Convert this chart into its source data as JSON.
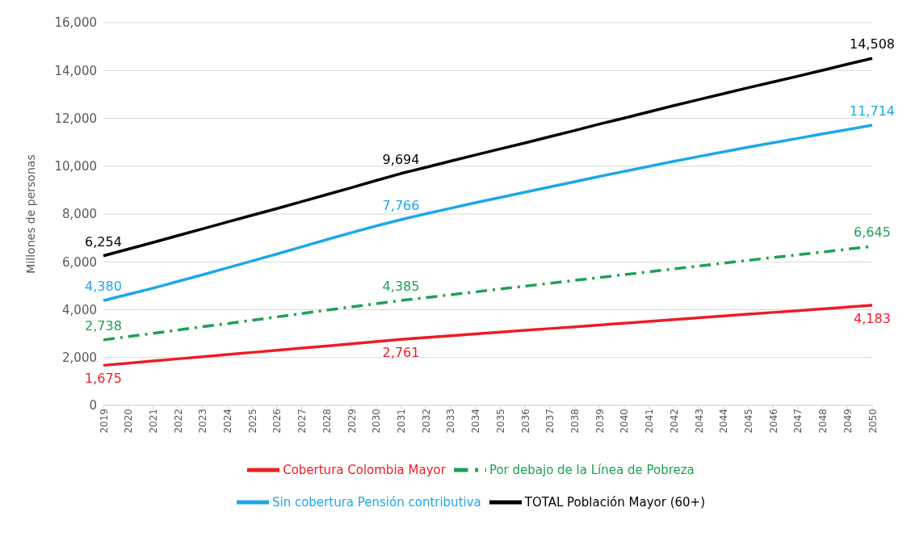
{
  "chart_data": {
    "type": "line",
    "ylabel": "Millones de personas",
    "categories": [
      "2019",
      "2020",
      "2021",
      "2022",
      "2023",
      "2024",
      "2025",
      "2026",
      "2027",
      "2028",
      "2029",
      "2030",
      "2031",
      "2032",
      "2033",
      "2034",
      "2035",
      "2036",
      "2037",
      "2038",
      "2039",
      "2040",
      "2041",
      "2042",
      "2043",
      "2044",
      "2045",
      "2046",
      "2047",
      "2048",
      "2049",
      "2050"
    ],
    "ylim": [
      0,
      16000
    ],
    "yticks": [
      {
        "value": 0,
        "label": "0"
      },
      {
        "value": 2000,
        "label": "2,000"
      },
      {
        "value": 4000,
        "label": "4,000"
      },
      {
        "value": 6000,
        "label": "6,000"
      },
      {
        "value": 8000,
        "label": "8,000"
      },
      {
        "value": 10000,
        "label": "10,000"
      },
      {
        "value": 12000,
        "label": "12,000"
      },
      {
        "value": 14000,
        "label": "14,000"
      },
      {
        "value": 16000,
        "label": "16,000"
      }
    ],
    "grid": "y",
    "legend": "bottom",
    "marker": "none",
    "series": [
      {
        "name": "Cobertura Colombia Mayor",
        "color": "#ee1c25",
        "line_style": "solid",
        "values": [
          1675,
          1765,
          1855,
          1945,
          2035,
          2125,
          2215,
          2305,
          2395,
          2485,
          2575,
          2670,
          2761,
          2836,
          2911,
          2986,
          3061,
          3136,
          3211,
          3286,
          3361,
          3436,
          3511,
          3586,
          3661,
          3736,
          3811,
          3886,
          3961,
          4036,
          4111,
          4183
        ],
        "value_labels": [
          "1,675",
          null,
          null,
          null,
          null,
          null,
          null,
          null,
          null,
          null,
          null,
          null,
          "2,761",
          null,
          null,
          null,
          null,
          null,
          null,
          null,
          null,
          null,
          null,
          null,
          null,
          null,
          null,
          null,
          null,
          null,
          null,
          "4,183"
        ]
      },
      {
        "name": "Por debajo de la Línea de Pobreza",
        "color": "#1fa055",
        "line_style": "dashed",
        "values": [
          2738,
          2875,
          3010,
          3150,
          3290,
          3420,
          3560,
          3700,
          3840,
          3980,
          4120,
          4250,
          4385,
          4505,
          4625,
          4745,
          4865,
          4985,
          5105,
          5225,
          5345,
          5465,
          5585,
          5705,
          5825,
          5945,
          6065,
          6180,
          6295,
          6410,
          6530,
          6645
        ],
        "value_labels": [
          "2,738",
          null,
          null,
          null,
          null,
          null,
          null,
          null,
          null,
          null,
          null,
          null,
          "4,385",
          null,
          null,
          null,
          null,
          null,
          null,
          null,
          null,
          null,
          null,
          null,
          null,
          null,
          null,
          null,
          null,
          null,
          null,
          "6,645"
        ]
      },
      {
        "name": "Sin cobertura Pensión contributiva",
        "color": "#1ea7e8",
        "line_style": "solid",
        "values": [
          4380,
          4640,
          4900,
          5180,
          5460,
          5750,
          6040,
          6330,
          6630,
          6930,
          7220,
          7500,
          7766,
          8010,
          8240,
          8470,
          8690,
          8910,
          9130,
          9350,
          9570,
          9780,
          9990,
          10200,
          10400,
          10600,
          10790,
          10980,
          11160,
          11350,
          11530,
          11714
        ],
        "value_labels": [
          "4,380",
          null,
          null,
          null,
          null,
          null,
          null,
          null,
          null,
          null,
          null,
          null,
          "7,766",
          null,
          null,
          null,
          null,
          null,
          null,
          null,
          null,
          null,
          null,
          null,
          null,
          null,
          null,
          null,
          null,
          null,
          null,
          "11,714"
        ]
      },
      {
        "name": "TOTAL Población Mayor (60+)",
        "color": "#000000",
        "line_style": "solid",
        "values": [
          6254,
          6530,
          6810,
          7095,
          7380,
          7665,
          7950,
          8230,
          8520,
          8810,
          9100,
          9400,
          9694,
          9950,
          10210,
          10470,
          10720,
          10970,
          11230,
          11490,
          11760,
          12010,
          12270,
          12530,
          12780,
          13030,
          13280,
          13520,
          13760,
          14010,
          14260,
          14508
        ],
        "value_labels": [
          "6,254",
          null,
          null,
          null,
          null,
          null,
          null,
          null,
          null,
          null,
          null,
          null,
          "9,694",
          null,
          null,
          null,
          null,
          null,
          null,
          null,
          null,
          null,
          null,
          null,
          null,
          null,
          null,
          null,
          null,
          null,
          null,
          "14,508"
        ]
      }
    ]
  }
}
